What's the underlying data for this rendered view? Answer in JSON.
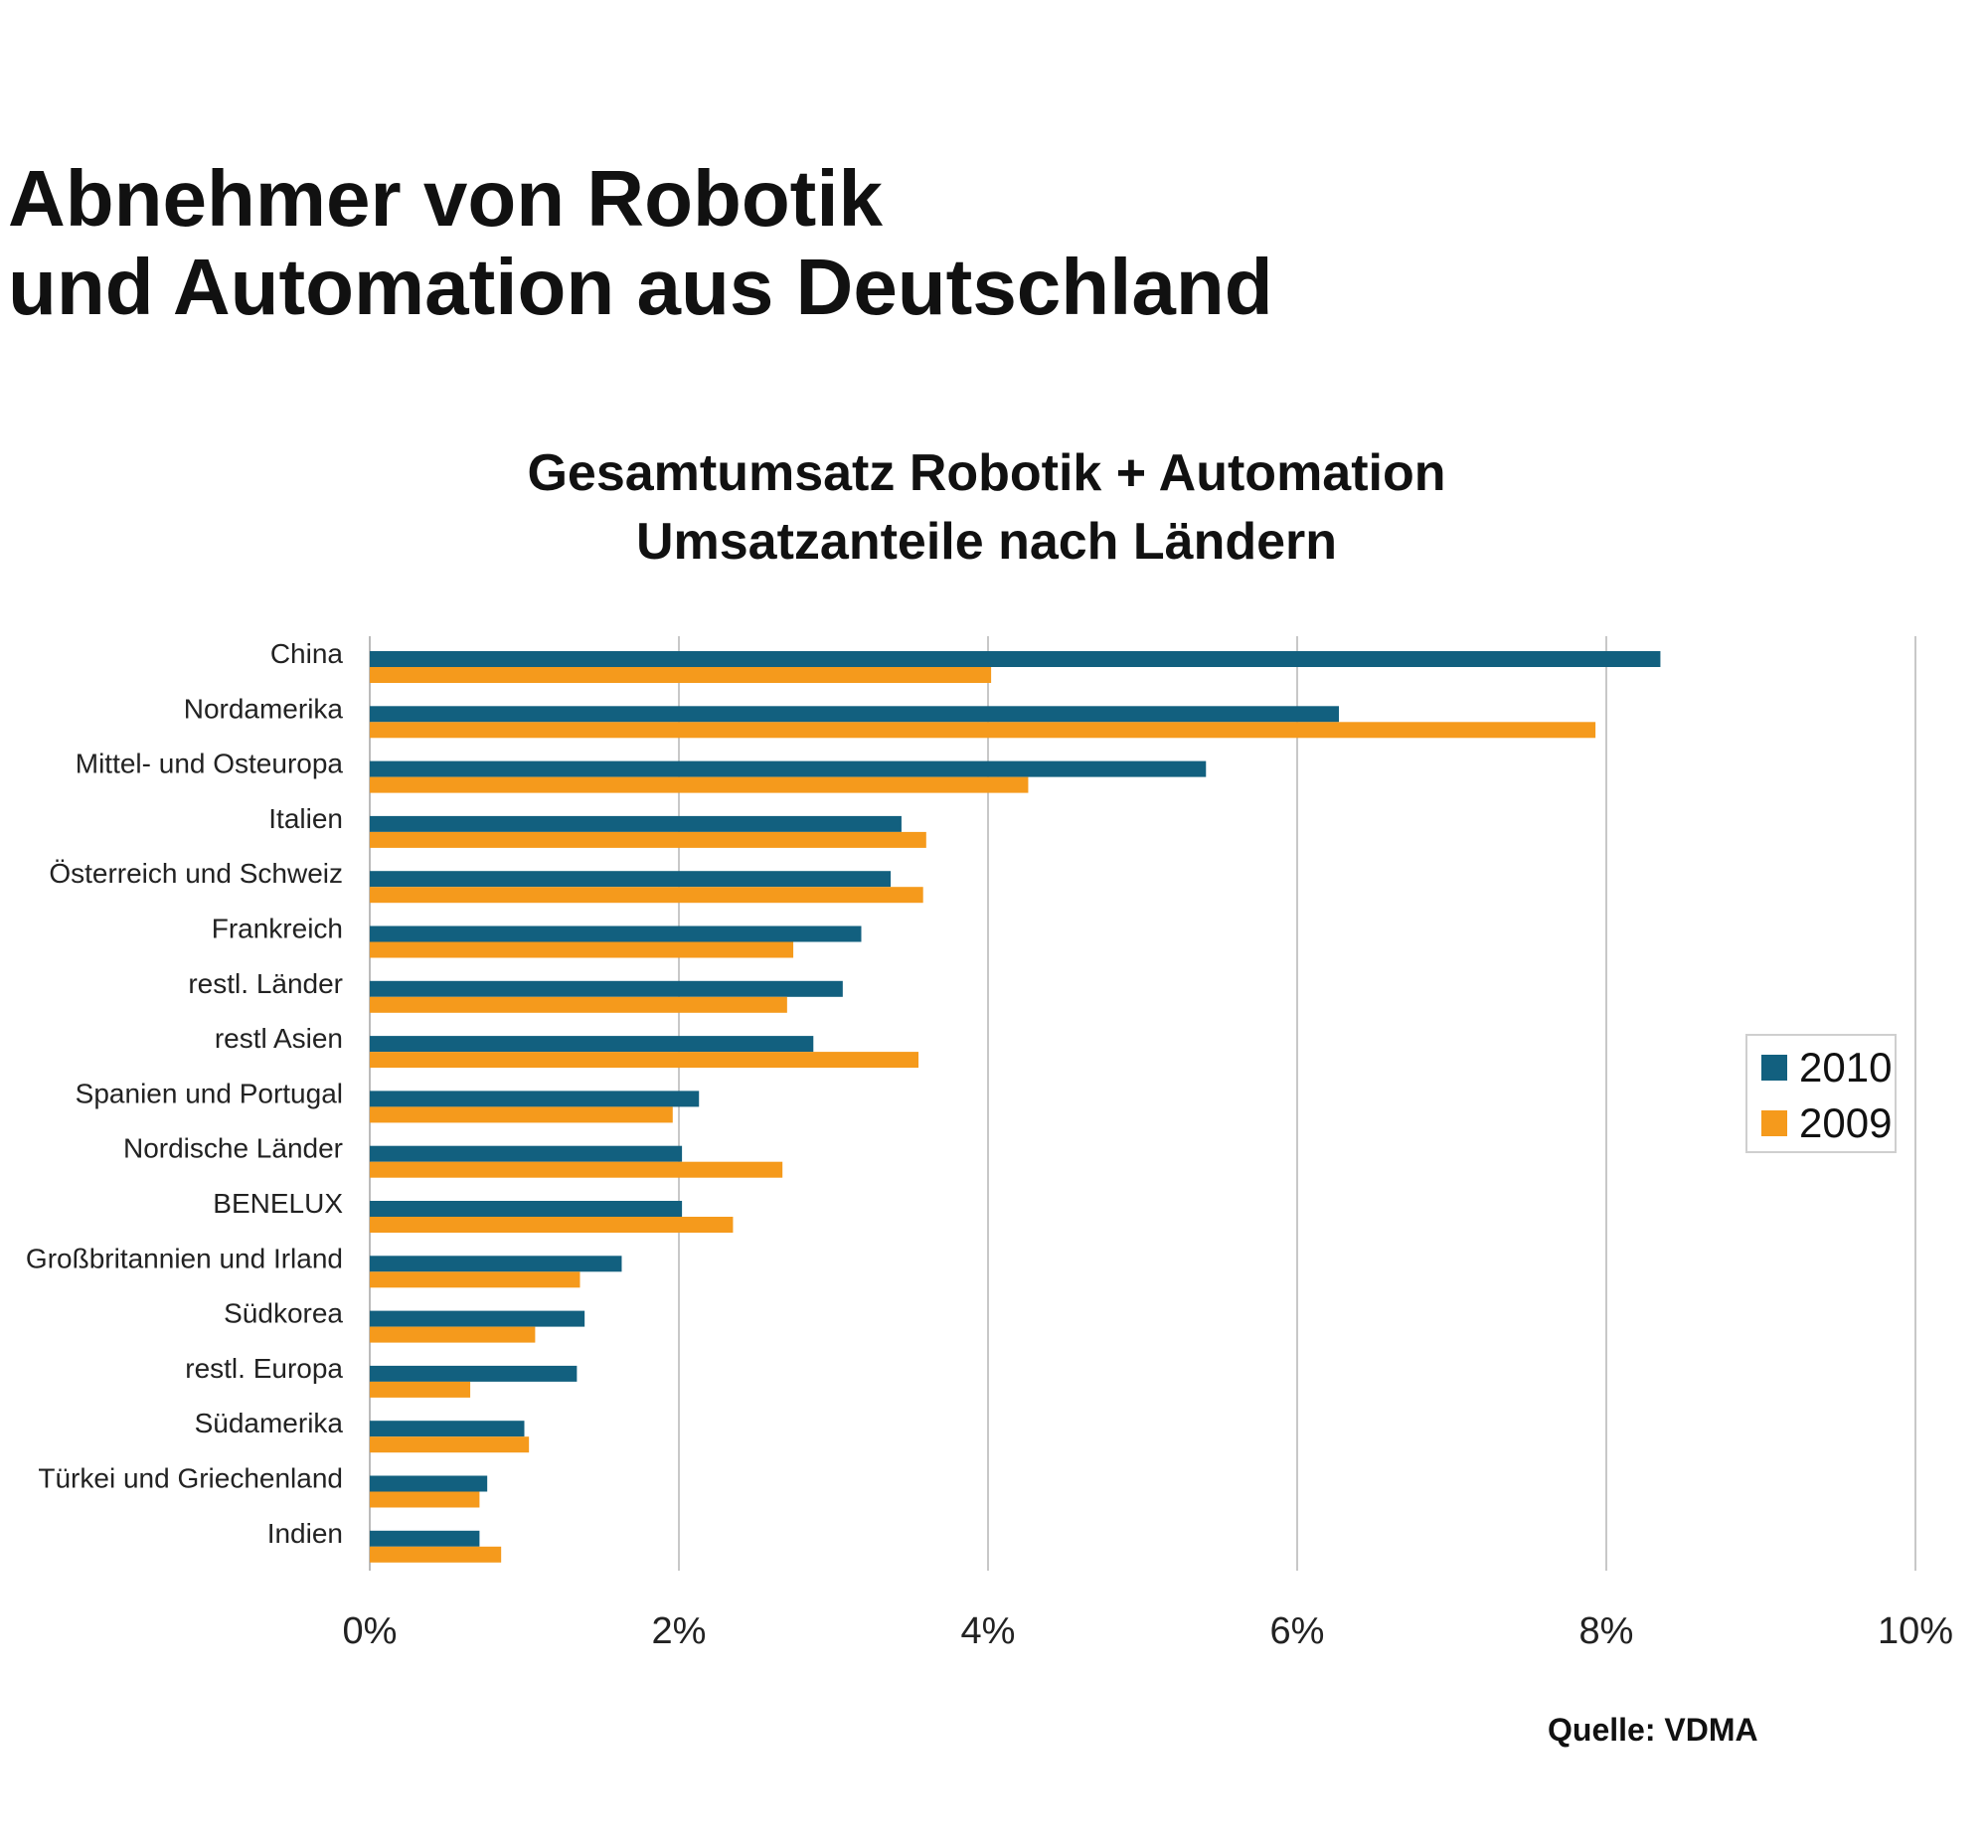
{
  "heading": {
    "line1": "Abnehmer von Robotik",
    "line2": "und Automation aus Deutschland"
  },
  "source": "Quelle: VDMA",
  "colors": {
    "series_2010": "#12607f",
    "series_2009": "#f59a1c",
    "grid": "#c8c8c8"
  },
  "chart_data": {
    "type": "bar",
    "orientation": "horizontal",
    "title": "Gesamtumsatz Robotik + Automation",
    "subtitle": "Umsatzanteile nach Ländern",
    "categories": [
      "China",
      "Nordamerika",
      "Mittel- und Osteuropa",
      "Italien",
      "Österreich und Schweiz",
      "Frankreich",
      "restl. Länder",
      "restl Asien",
      "Spanien und Portugal",
      "Nordische Länder",
      "BENELUX",
      "Großbritannien und Irland",
      "Südkorea",
      "restl. Europa",
      "Südamerika",
      "Türkei und Griechenland",
      "Indien"
    ],
    "series": [
      {
        "name": "2010",
        "values": [
          8.35,
          6.27,
          5.41,
          3.44,
          3.37,
          3.18,
          3.06,
          2.87,
          2.13,
          2.02,
          2.02,
          1.63,
          1.39,
          1.34,
          1.0,
          0.76,
          0.71
        ]
      },
      {
        "name": "2009",
        "values": [
          4.02,
          7.93,
          4.26,
          3.6,
          3.58,
          2.74,
          2.7,
          3.55,
          1.96,
          2.67,
          2.35,
          1.36,
          1.07,
          0.65,
          1.03,
          0.71,
          0.85
        ]
      }
    ],
    "x_ticks": [
      "0%",
      "2%",
      "4%",
      "6%",
      "8%",
      "10%"
    ],
    "xlim": [
      0,
      10
    ],
    "xlabel": "",
    "ylabel": "",
    "grid": true,
    "legend_position": "right"
  }
}
